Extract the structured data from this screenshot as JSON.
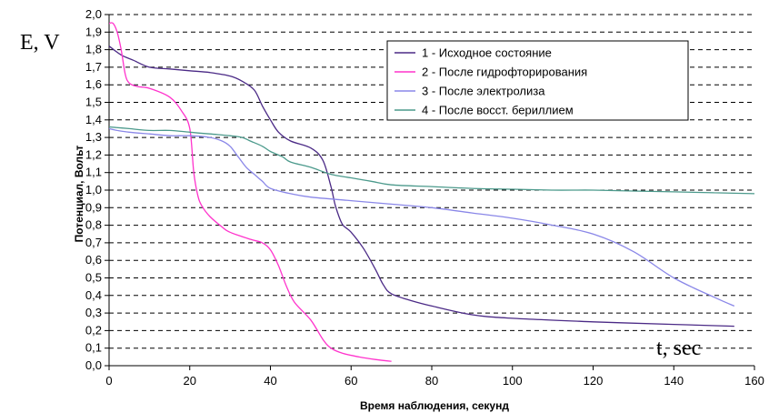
{
  "chart_data": {
    "type": "line",
    "xlabel": "Время наблюдения, секунд",
    "ylabel": "Потенциал, Вольт",
    "xlim": [
      0,
      160
    ],
    "ylim": [
      0,
      2.0
    ],
    "x_ticks": [
      "0",
      "20",
      "40",
      "60",
      "80",
      "100",
      "120",
      "140",
      "160"
    ],
    "y_ticks": [
      "0,0",
      "0,1",
      "0,2",
      "0,3",
      "0,4",
      "0,5",
      "0,6",
      "0,7",
      "0,8",
      "0,9",
      "1,0",
      "1,1",
      "1,2",
      "1,3",
      "1,4",
      "1,5",
      "1,6",
      "1,7",
      "1,8",
      "1,9",
      "2,0"
    ],
    "grid": "horizontal dashed",
    "legend_position": "top-right",
    "annotations": {
      "y_label_big": "E, V",
      "x_label_big": "t, sec"
    },
    "series": [
      {
        "name": "1 - Исходное состояние",
        "color": "#4b2a86",
        "x": [
          0,
          3,
          6,
          10,
          15,
          20,
          25,
          30,
          33,
          36,
          38,
          40,
          42,
          45,
          50,
          53,
          55,
          56,
          57,
          58,
          60,
          63,
          66,
          68,
          70,
          75,
          80,
          90,
          100,
          120,
          140,
          155
        ],
        "y": [
          1.82,
          1.77,
          1.74,
          1.7,
          1.69,
          1.68,
          1.67,
          1.65,
          1.62,
          1.57,
          1.48,
          1.4,
          1.33,
          1.28,
          1.24,
          1.17,
          1.02,
          0.92,
          0.85,
          0.8,
          0.76,
          0.67,
          0.55,
          0.46,
          0.41,
          0.37,
          0.34,
          0.29,
          0.27,
          0.25,
          0.235,
          0.225
        ]
      },
      {
        "name": "2 - После гидрофторирования",
        "color": "#ff33cc",
        "x": [
          0,
          1,
          2,
          3,
          4,
          5,
          7,
          10,
          15,
          18,
          20,
          21,
          22,
          23,
          25,
          28,
          30,
          35,
          38,
          40,
          42,
          44,
          46,
          50,
          53,
          55,
          58,
          62,
          66,
          70
        ],
        "y": [
          1.95,
          1.95,
          1.9,
          1.8,
          1.66,
          1.61,
          1.59,
          1.58,
          1.53,
          1.45,
          1.35,
          1.1,
          0.97,
          0.91,
          0.85,
          0.79,
          0.76,
          0.72,
          0.7,
          0.66,
          0.57,
          0.45,
          0.36,
          0.26,
          0.15,
          0.1,
          0.07,
          0.05,
          0.035,
          0.025
        ]
      },
      {
        "name": "3 - После электролиза",
        "color": "#8a87e8",
        "x": [
          0,
          2,
          5,
          10,
          15,
          20,
          25,
          28,
          30,
          32,
          34,
          36,
          38,
          40,
          45,
          50,
          60,
          70,
          80,
          90,
          100,
          110,
          120,
          130,
          140,
          150,
          155
        ],
        "y": [
          1.35,
          1.34,
          1.33,
          1.32,
          1.31,
          1.31,
          1.3,
          1.28,
          1.25,
          1.19,
          1.13,
          1.09,
          1.05,
          1.01,
          0.98,
          0.96,
          0.94,
          0.92,
          0.9,
          0.87,
          0.84,
          0.8,
          0.75,
          0.65,
          0.5,
          0.39,
          0.34
        ]
      },
      {
        "name": "4 - После восст. бериллием",
        "color": "#4c9a8c",
        "x": [
          0,
          5,
          10,
          15,
          20,
          25,
          30,
          33,
          35,
          38,
          40,
          43,
          45,
          50,
          55,
          60,
          65,
          70,
          80,
          90,
          100,
          110,
          120,
          130,
          140,
          150,
          160
        ],
        "y": [
          1.36,
          1.35,
          1.34,
          1.34,
          1.33,
          1.32,
          1.31,
          1.3,
          1.28,
          1.25,
          1.22,
          1.19,
          1.16,
          1.13,
          1.09,
          1.07,
          1.05,
          1.03,
          1.02,
          1.01,
          1.005,
          1.0,
          1.0,
          0.995,
          0.99,
          0.985,
          0.98
        ]
      }
    ]
  }
}
